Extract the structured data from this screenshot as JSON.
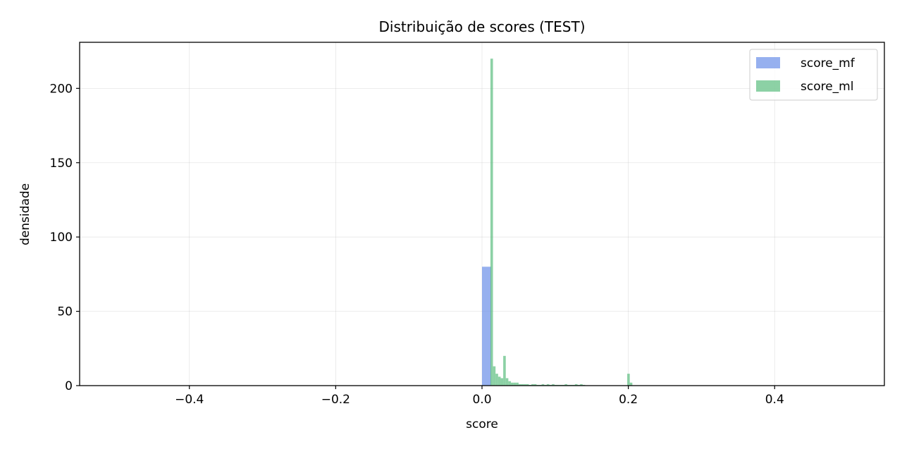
{
  "chart_data": {
    "type": "histogram",
    "title": "Distribuição de scores (TEST)",
    "xlabel": "score",
    "ylabel": "densidade",
    "xlim": [
      -0.55,
      0.55
    ],
    "ylim": [
      0,
      231
    ],
    "xticks": [
      -0.4,
      -0.2,
      0.0,
      0.2,
      0.4
    ],
    "xtick_labels": [
      "−0.4",
      "−0.2",
      "0.0",
      "0.2",
      "0.4"
    ],
    "yticks": [
      0,
      50,
      100,
      150,
      200
    ],
    "ytick_labels": [
      "0",
      "50",
      "100",
      "150",
      "200"
    ],
    "grid": true,
    "legend_position": "top-right",
    "series": [
      {
        "name": "score_mf",
        "color": "#6a8fe8",
        "bins": [
          {
            "x0": 0.0,
            "x1": 0.0125,
            "value": 80
          }
        ]
      },
      {
        "name": "score_ml",
        "color": "#5bbd7f",
        "bins": [
          {
            "x0": 0.0115,
            "x1": 0.015,
            "value": 220
          },
          {
            "x0": 0.015,
            "x1": 0.0185,
            "value": 13
          },
          {
            "x0": 0.0185,
            "x1": 0.022,
            "value": 8
          },
          {
            "x0": 0.022,
            "x1": 0.0255,
            "value": 6
          },
          {
            "x0": 0.0255,
            "x1": 0.029,
            "value": 5
          },
          {
            "x0": 0.029,
            "x1": 0.0325,
            "value": 20
          },
          {
            "x0": 0.0325,
            "x1": 0.036,
            "value": 5
          },
          {
            "x0": 0.036,
            "x1": 0.0395,
            "value": 3
          },
          {
            "x0": 0.0395,
            "x1": 0.043,
            "value": 2
          },
          {
            "x0": 0.043,
            "x1": 0.0465,
            "value": 2
          },
          {
            "x0": 0.0465,
            "x1": 0.05,
            "value": 2
          },
          {
            "x0": 0.05,
            "x1": 0.0535,
            "value": 1
          },
          {
            "x0": 0.0535,
            "x1": 0.057,
            "value": 1
          },
          {
            "x0": 0.057,
            "x1": 0.0605,
            "value": 1
          },
          {
            "x0": 0.0605,
            "x1": 0.064,
            "value": 1
          },
          {
            "x0": 0.064,
            "x1": 0.0675,
            "value": 0.5
          },
          {
            "x0": 0.0675,
            "x1": 0.071,
            "value": 1
          },
          {
            "x0": 0.071,
            "x1": 0.0745,
            "value": 1
          },
          {
            "x0": 0.0745,
            "x1": 0.078,
            "value": 0.5
          },
          {
            "x0": 0.078,
            "x1": 0.0815,
            "value": 0.5
          },
          {
            "x0": 0.0815,
            "x1": 0.085,
            "value": 1
          },
          {
            "x0": 0.085,
            "x1": 0.0885,
            "value": 0.5
          },
          {
            "x0": 0.0885,
            "x1": 0.092,
            "value": 1
          },
          {
            "x0": 0.092,
            "x1": 0.0955,
            "value": 0.5
          },
          {
            "x0": 0.0955,
            "x1": 0.099,
            "value": 1
          },
          {
            "x0": 0.099,
            "x1": 0.1025,
            "value": 0.5
          },
          {
            "x0": 0.1025,
            "x1": 0.106,
            "value": 0.5
          },
          {
            "x0": 0.106,
            "x1": 0.1095,
            "value": 0.5
          },
          {
            "x0": 0.1095,
            "x1": 0.113,
            "value": 0.5
          },
          {
            "x0": 0.113,
            "x1": 0.1165,
            "value": 1
          },
          {
            "x0": 0.1165,
            "x1": 0.12,
            "value": 0.5
          },
          {
            "x0": 0.12,
            "x1": 0.1235,
            "value": 0.5
          },
          {
            "x0": 0.1235,
            "x1": 0.127,
            "value": 0.5
          },
          {
            "x0": 0.127,
            "x1": 0.1305,
            "value": 1
          },
          {
            "x0": 0.1305,
            "x1": 0.134,
            "value": 0.5
          },
          {
            "x0": 0.134,
            "x1": 0.1375,
            "value": 1
          },
          {
            "x0": 0.1375,
            "x1": 0.141,
            "value": 0.5
          },
          {
            "x0": 0.1985,
            "x1": 0.202,
            "value": 8
          },
          {
            "x0": 0.202,
            "x1": 0.2055,
            "value": 2
          }
        ]
      }
    ]
  }
}
